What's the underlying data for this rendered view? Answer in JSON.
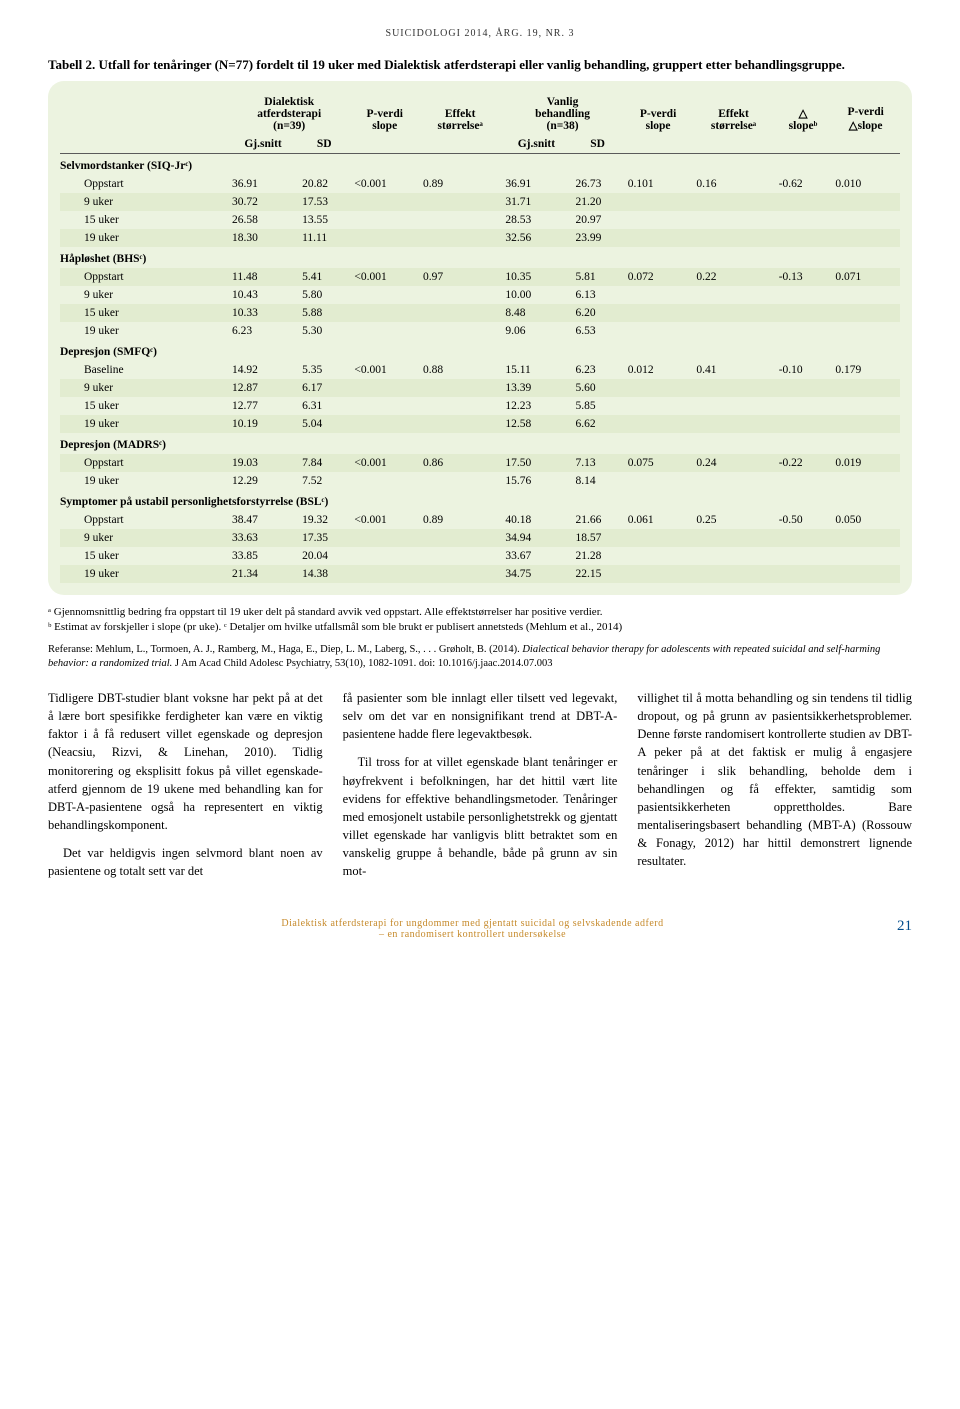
{
  "journal_header": "SUICIDOLOGI 2014, ÅRG. 19, NR. 3",
  "caption": "Tabell 2. Utfall for tenåringer (N=77) fordelt til 19 uker med Dialektisk atferdsterapi eller vanlig behandling, gruppert etter behandlingsgruppe.",
  "colors": {
    "table_bg": "#ecf3e0",
    "shade_bg": "#e2ecd0",
    "rule": "#5a5a5a",
    "footer_color": "#c68a2b",
    "page_num_color": "#004c8c"
  },
  "fontsizes": {
    "journal_header": 10,
    "caption": 13,
    "table": 11.5,
    "footnotes": 11,
    "reference": 10.5,
    "body": 12.5,
    "footer": 10
  },
  "header": {
    "c_dbt_top": "Dialektisk",
    "c_dbt_mid": "atferdsterapi",
    "c_dbt_bot": "(n=39)",
    "c_p1_top": "P-verdi",
    "c_p1_bot": "slope",
    "c_eff1_top": "Effekt",
    "c_eff1_bot": "størrelseᵃ",
    "c_van_top": "Vanlig",
    "c_van_mid": "behandling",
    "c_van_bot": "(n=38)",
    "c_p2_top": "P-verdi",
    "c_p2_bot": "slope",
    "c_eff2_top": "Effekt",
    "c_eff2_bot": "størrelseᵃ",
    "c_d_top": "△",
    "c_d_bot": "slopeᵇ",
    "c_p3_top": "P-verdi",
    "c_p3_bot": "△slope",
    "sub_gj1": "Gj.snitt",
    "sub_sd1": "SD",
    "sub_gj2": "Gj.snitt",
    "sub_sd2": "SD"
  },
  "sections": [
    {
      "title": "Selvmordstanker (SIQ-Jrᶜ)",
      "rows": [
        {
          "label": "Oppstart",
          "gj1": "36.91",
          "sd1": "20.82",
          "p1": "<0.001",
          "eff1": "0.89",
          "gj2": "36.91",
          "sd2": "26.73",
          "p2": "0.101",
          "eff2": "0.16",
          "dslope": "-0.62",
          "pd": "0.010"
        },
        {
          "label": "9 uker",
          "gj1": "30.72",
          "sd1": "17.53",
          "p1": "",
          "eff1": "",
          "gj2": "31.71",
          "sd2": "21.20",
          "p2": "",
          "eff2": "",
          "dslope": "",
          "pd": "",
          "shade": true
        },
        {
          "label": "15 uker",
          "gj1": "26.58",
          "sd1": "13.55",
          "p1": "",
          "eff1": "",
          "gj2": "28.53",
          "sd2": "20.97",
          "p2": "",
          "eff2": "",
          "dslope": "",
          "pd": ""
        },
        {
          "label": "19 uker",
          "gj1": "18.30",
          "sd1": "11.11",
          "p1": "",
          "eff1": "",
          "gj2": "32.56",
          "sd2": "23.99",
          "p2": "",
          "eff2": "",
          "dslope": "",
          "pd": "",
          "shade": true
        }
      ]
    },
    {
      "title": "Håpløshet (BHSᶜ)",
      "rows": [
        {
          "label": "Oppstart",
          "gj1": "11.48",
          "sd1": "5.41",
          "p1": "<0.001",
          "eff1": "0.97",
          "gj2": "10.35",
          "sd2": "5.81",
          "p2": "0.072",
          "eff2": "0.22",
          "dslope": "-0.13",
          "pd": "0.071",
          "shade": true
        },
        {
          "label": "9 uker",
          "gj1": "10.43",
          "sd1": "5.80",
          "p1": "",
          "eff1": "",
          "gj2": "10.00",
          "sd2": "6.13",
          "p2": "",
          "eff2": "",
          "dslope": "",
          "pd": ""
        },
        {
          "label": "15 uker",
          "gj1": "10.33",
          "sd1": "5.88",
          "p1": "",
          "eff1": "",
          "gj2": "8.48",
          "sd2": "6.20",
          "p2": "",
          "eff2": "",
          "dslope": "",
          "pd": "",
          "shade": true
        },
        {
          "label": "19 uker",
          "gj1": "6.23",
          "sd1": "5.30",
          "p1": "",
          "eff1": "",
          "gj2": "9.06",
          "sd2": "6.53",
          "p2": "",
          "eff2": "",
          "dslope": "",
          "pd": ""
        }
      ]
    },
    {
      "title": "Depresjon (SMFQᶜ)",
      "rows": [
        {
          "label": "Baseline",
          "gj1": "14.92",
          "sd1": "5.35",
          "p1": "<0.001",
          "eff1": "0.88",
          "gj2": "15.11",
          "sd2": "6.23",
          "p2": "0.012",
          "eff2": "0.41",
          "dslope": "-0.10",
          "pd": "0.179"
        },
        {
          "label": "9 uker",
          "gj1": "12.87",
          "sd1": "6.17",
          "p1": "",
          "eff1": "",
          "gj2": "13.39",
          "sd2": "5.60",
          "p2": "",
          "eff2": "",
          "dslope": "",
          "pd": "",
          "shade": true
        },
        {
          "label": "15 uker",
          "gj1": "12.77",
          "sd1": "6.31",
          "p1": "",
          "eff1": "",
          "gj2": "12.23",
          "sd2": "5.85",
          "p2": "",
          "eff2": "",
          "dslope": "",
          "pd": ""
        },
        {
          "label": "19 uker",
          "gj1": "10.19",
          "sd1": "5.04",
          "p1": "",
          "eff1": "",
          "gj2": "12.58",
          "sd2": "6.62",
          "p2": "",
          "eff2": "",
          "dslope": "",
          "pd": "",
          "shade": true
        }
      ]
    },
    {
      "title": "Depresjon (MADRSᶜ)",
      "rows": [
        {
          "label": "Oppstart",
          "gj1": "19.03",
          "sd1": "7.84",
          "p1": "<0.001",
          "eff1": "0.86",
          "gj2": "17.50",
          "sd2": "7.13",
          "p2": "0.075",
          "eff2": "0.24",
          "dslope": "-0.22",
          "pd": "0.019",
          "shade": true
        },
        {
          "label": "19 uker",
          "gj1": "12.29",
          "sd1": "7.52",
          "p1": "",
          "eff1": "",
          "gj2": "15.76",
          "sd2": "8.14",
          "p2": "",
          "eff2": "",
          "dslope": "",
          "pd": ""
        }
      ]
    },
    {
      "title": "Symptomer på ustabil personlighetsforstyrrelse (BSLᶜ)",
      "rows": [
        {
          "label": "Oppstart",
          "gj1": "38.47",
          "sd1": "19.32",
          "p1": "<0.001",
          "eff1": "0.89",
          "gj2": "40.18",
          "sd2": "21.66",
          "p2": "0.061",
          "eff2": "0.25",
          "dslope": "-0.50",
          "pd": "0.050"
        },
        {
          "label": "9 uker",
          "gj1": "33.63",
          "sd1": "17.35",
          "p1": "",
          "eff1": "",
          "gj2": "34.94",
          "sd2": "18.57",
          "p2": "",
          "eff2": "",
          "dslope": "",
          "pd": "",
          "shade": true
        },
        {
          "label": "15 uker",
          "gj1": "33.85",
          "sd1": "20.04",
          "p1": "",
          "eff1": "",
          "gj2": "33.67",
          "sd2": "21.28",
          "p2": "",
          "eff2": "",
          "dslope": "",
          "pd": ""
        },
        {
          "label": "19 uker",
          "gj1": "21.34",
          "sd1": "14.38",
          "p1": "",
          "eff1": "",
          "gj2": "34.75",
          "sd2": "22.15",
          "p2": "",
          "eff2": "",
          "dslope": "",
          "pd": "",
          "shade": true
        }
      ]
    }
  ],
  "footnote_a": "ᵃ Gjennomsnittlig bedring fra oppstart til 19 uker delt på standard avvik ved oppstart. Alle effektstørrelser har positive verdier.",
  "footnote_b": "ᵇ Estimat av forskjeller i slope (pr uke).  ᶜ Detaljer om hvilke utfallsmål som ble brukt er publisert annetsteds (Mehlum et al., 2014)",
  "reference_pre": "Referanse: Mehlum, L., Tormoen, A. J., Ramberg, M., Haga, E., Diep, L. M., Laberg, S., . . . Grøholt, B. (2014). ",
  "reference_title": "Dialectical behavior therapy for adolescents with repeated suicidal and self-harming behavior: a randomized trial.",
  "reference_post": " J Am Acad Child Adolesc Psychiatry, 53(10), 1082-1091. doi: 10.1016/j.jaac.2014.07.003",
  "body_cols": [
    [
      "Tidligere DBT-studier blant voksne har pekt på at det å lære bort spesifikke ferdigheter kan være en viktig faktor i å få redusert villet egenskade og depresjon (Neacsiu, Rizvi, & Linehan, 2010). Tidlig monitorering og eksplisitt fokus på villet egenskade-atferd gjennom de 19 ukene med behandling kan for DBT-A-pasientene også ha representert en viktig behandlingskomponent.",
      "Det var heldigvis ingen selvmord blant noen av pasientene og totalt sett var det"
    ],
    [
      "få pasienter som ble innlagt eller tilsett ved legevakt, selv om det var en nonsignifikant trend at DBT-A-pasientene hadde flere legevaktbesøk.",
      "Til tross for at villet egenskade blant tenåringer er høyfrekvent i befolkningen, har det hittil vært lite evidens for effektive behandlingsmetoder. Tenåringer med emosjonelt ustabile personlighetstrekk og gjentatt villet egenskade har vanligvis blitt betraktet som en vanskelig gruppe å behandle, både på grunn av sin mot-"
    ],
    [
      "villighet til å motta behandling og sin tendens til tidlig dropout, og på grunn av pasientsikkerhetsproblemer. Denne første randomisert kontrollerte studien av DBT-A peker på at det faktisk er mulig å engasjere tenåringer i slik behandling, beholde dem i behandlingen og få effekter, samtidig som pasientsikkerheten opprettholdes. Bare mentaliseringsbasert behandling (MBT-A) (Rossouw & Fonagy, 2012) har hittil demonstrert lignende resultater."
    ]
  ],
  "footer_line1": "Dialektisk atferdsterapi for ungdommer med gjentatt suicidal og selvskadende adferd",
  "footer_line2": "– en randomisert kontrollert undersøkelse",
  "page_number": "21"
}
